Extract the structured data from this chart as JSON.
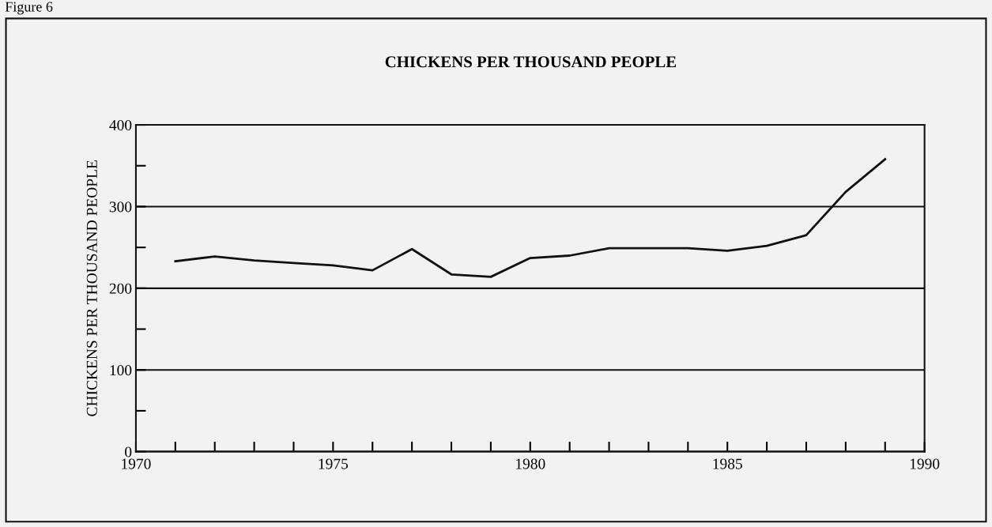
{
  "chart_data": {
    "type": "line",
    "title": "CHICKENS PER THOUSAND PEOPLE",
    "ylabel": "CHICKENS PER THOUSAND PEOPLE",
    "annotations": [
      "Figure 6"
    ],
    "x": [
      1971,
      1972,
      1973,
      1974,
      1975,
      1976,
      1977,
      1978,
      1979,
      1980,
      1981,
      1982,
      1983,
      1984,
      1985,
      1986,
      1987,
      1988,
      1989
    ],
    "series": [
      {
        "color": "#111111",
        "values": [
          233,
          239,
          234,
          231,
          228,
          222,
          248,
          217,
          214,
          237,
          240,
          249,
          249,
          249,
          246,
          252,
          265,
          318,
          358
        ]
      }
    ],
    "xlim": [
      1970,
      1990
    ],
    "xticks": [
      1970,
      {
        "value": 1971,
        "label": null
      },
      {
        "value": 1972,
        "label": null
      },
      {
        "value": 1973,
        "label": null
      },
      {
        "value": 1974,
        "label": null
      },
      1975,
      {
        "value": 1976,
        "label": null
      },
      {
        "value": 1977,
        "label": null
      },
      {
        "value": 1978,
        "label": null
      },
      {
        "value": 1979,
        "label": null
      },
      1980,
      {
        "value": 1981,
        "label": null
      },
      {
        "value": 1982,
        "label": null
      },
      {
        "value": 1983,
        "label": null
      },
      {
        "value": 1984,
        "label": null
      },
      1985,
      {
        "value": 1986,
        "label": null
      },
      {
        "value": 1987,
        "label": null
      },
      {
        "value": 1988,
        "label": null
      },
      {
        "value": 1989,
        "label": null
      },
      1990
    ],
    "ylim": [
      0,
      400
    ],
    "yticks": [
      0,
      {
        "value": 50,
        "label": null
      },
      100,
      {
        "value": 150,
        "label": null
      },
      200,
      {
        "value": 250,
        "label": null
      },
      300,
      {
        "value": 350,
        "label": null
      },
      400
    ],
    "grid": "y",
    "marker": "none",
    "line_style": "solid"
  }
}
